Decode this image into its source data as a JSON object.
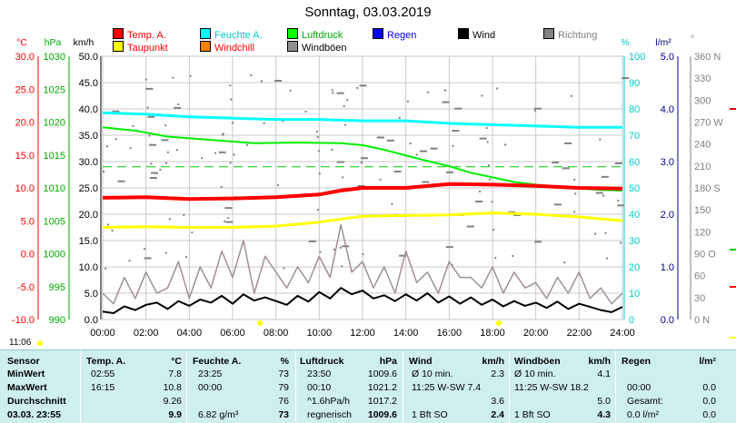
{
  "title": "Sonntag, 03.03.2019",
  "legend": [
    {
      "label": "Temp. A.",
      "color": "#ff0000",
      "text_color": "#ff0000"
    },
    {
      "label": "Feuchte A.",
      "color": "#00ffff",
      "text_color": "#00cccc"
    },
    {
      "label": "Luftdruck",
      "color": "#00ff00",
      "text_color": "#00aa00"
    },
    {
      "label": "Regen",
      "color": "#0000ff",
      "text_color": "#0000ff"
    },
    {
      "label": "Wind",
      "color": "#000000",
      "text_color": "#000000"
    },
    {
      "label": "Richtung",
      "color": "#808080",
      "text_color": "#808080"
    },
    {
      "label": "Taupunkt",
      "color": "#ffff00",
      "text_color": "#ff0000"
    },
    {
      "label": "Windchill",
      "color": "#ff8000",
      "text_color": "#ff0000"
    },
    {
      "label": "Windböen",
      "color": "#909090",
      "text_color": "#000000"
    }
  ],
  "axis_units": {
    "temp": "°C",
    "press": "hPa",
    "wind": "km/h",
    "hum": "%",
    "rain": "l/m²",
    "dir": "°"
  },
  "time_marker": "11:06",
  "chart_data": {
    "type": "line",
    "x_ticks": [
      "00:00",
      "02:00",
      "04:00",
      "06:00",
      "08:00",
      "10:00",
      "12:00",
      "14:00",
      "16:00",
      "18:00",
      "20:00",
      "22:00",
      "24:00"
    ],
    "xlim": [
      0,
      24
    ],
    "axes": {
      "temp": {
        "ylim": [
          -10,
          30
        ],
        "ticks": [
          "30.0",
          "25.0",
          "20.0",
          "15.0",
          "10.0",
          "5.0",
          "0.0",
          "-5.0",
          "-10.0"
        ],
        "color": "#ff0000"
      },
      "press": {
        "ylim": [
          990,
          1030
        ],
        "ticks": [
          "1030",
          "1025",
          "1020",
          "1015",
          "1010",
          "1005",
          "1000",
          "995",
          "990"
        ],
        "color": "#00aa00"
      },
      "wind": {
        "ylim": [
          0,
          50
        ],
        "ticks": [
          "50.0",
          "45.0",
          "40.0",
          "35.0",
          "30.0",
          "25.0",
          "20.0",
          "15.0",
          "10.0",
          "5.0",
          "0.0"
        ],
        "color": "#000000"
      },
      "hum": {
        "ylim": [
          0,
          100
        ],
        "ticks": [
          "100",
          "90",
          "80",
          "70",
          "60",
          "50",
          "40",
          "30",
          "20",
          "10",
          "0"
        ],
        "color": "#00cccc"
      },
      "rain": {
        "ylim": [
          0,
          5
        ],
        "ticks": [
          "5.0",
          "4.0",
          "3.0",
          "2.0",
          "1.0",
          "0.0"
        ],
        "color": "#000080"
      },
      "dir": {
        "ylim": [
          0,
          360
        ],
        "ticks": [
          "360 N",
          "330",
          "300",
          "270 W",
          "240",
          "210",
          "180 S",
          "150",
          "120",
          "90 O",
          "60",
          "30",
          "0 N"
        ],
        "color": "#808080"
      }
    },
    "series": [
      {
        "name": "Temp. A.",
        "axis": "temp",
        "color": "#ff0000",
        "width": 4,
        "x": [
          0,
          2,
          4,
          6,
          8,
          10,
          11,
          12,
          14,
          16,
          18,
          20,
          22,
          24
        ],
        "y": [
          8.5,
          8.6,
          8.3,
          8.4,
          8.6,
          9.0,
          9.6,
          10.0,
          10.0,
          10.6,
          10.5,
          10.3,
          10.0,
          9.9
        ]
      },
      {
        "name": "Feuchte A.",
        "axis": "hum",
        "color": "#00ffff",
        "width": 3,
        "x": [
          0,
          2,
          4,
          6,
          8,
          10,
          12,
          14,
          16,
          18,
          20,
          22,
          24
        ],
        "y": [
          78.5,
          78,
          77,
          76.5,
          76,
          76,
          75.5,
          75.5,
          74.5,
          74,
          73.5,
          73,
          73
        ]
      },
      {
        "name": "Luftdruck",
        "axis": "press",
        "color": "#00ee00",
        "width": 2,
        "x": [
          0,
          1.5,
          3,
          5,
          7,
          9,
          11,
          12,
          13,
          14.5,
          16,
          17,
          18,
          19,
          20,
          21,
          22,
          23,
          24
        ],
        "y": [
          1019.2,
          1018.7,
          1017.8,
          1017.3,
          1016.8,
          1016.9,
          1016.8,
          1016.5,
          1015.8,
          1014.5,
          1013.3,
          1012.3,
          1011.6,
          1010.9,
          1010.5,
          1010.2,
          1009.9,
          1009.7,
          1009.6
        ]
      },
      {
        "name": "Taupunkt",
        "axis": "temp",
        "color": "#ffff00",
        "width": 3,
        "x": [
          0,
          2,
          4,
          6,
          8,
          10,
          12,
          14,
          16,
          18,
          20,
          22,
          24
        ],
        "y": [
          4.0,
          4.1,
          4.0,
          4.0,
          4.2,
          4.8,
          5.7,
          5.8,
          5.9,
          6.2,
          6.0,
          5.6,
          5.0
        ]
      },
      {
        "name": "Wind",
        "axis": "wind",
        "color": "#000000",
        "width": 2,
        "x": [
          0,
          0.5,
          1,
          1.5,
          2,
          2.5,
          3,
          3.5,
          4,
          4.5,
          5,
          5.5,
          6,
          6.5,
          7,
          7.5,
          8,
          8.5,
          9,
          9.5,
          10,
          10.5,
          11,
          11.5,
          12,
          12.5,
          13,
          13.5,
          14,
          14.5,
          15,
          15.5,
          16,
          16.5,
          17,
          17.5,
          18,
          18.5,
          19,
          19.5,
          20,
          20.5,
          21,
          21.5,
          22,
          22.5,
          23,
          23.5,
          24
        ],
        "y": [
          1.5,
          1.2,
          2.5,
          1.8,
          2.8,
          3.2,
          2.0,
          3.5,
          2.6,
          3.8,
          3.2,
          4.5,
          3.0,
          4.8,
          3.6,
          4.2,
          3.5,
          2.8,
          4.5,
          3.4,
          5.2,
          4.0,
          6.0,
          4.8,
          5.5,
          4.0,
          4.6,
          3.5,
          4.8,
          3.6,
          5.0,
          3.2,
          4.4,
          3.0,
          4.2,
          2.8,
          3.8,
          2.5,
          3.5,
          2.6,
          3.2,
          2.2,
          3.4,
          2.0,
          3.0,
          2.4,
          1.8,
          1.4,
          2.4
        ]
      },
      {
        "name": "Windböen",
        "axis": "wind",
        "color": "#a09090",
        "width": 1.5,
        "x": [
          0,
          0.5,
          1,
          1.5,
          2,
          2.5,
          3,
          3.5,
          4,
          4.5,
          5,
          5.5,
          6,
          6.5,
          7,
          7.5,
          8,
          8.5,
          9,
          9.5,
          10,
          10.5,
          11,
          11.5,
          12,
          12.5,
          13,
          13.5,
          14,
          14.5,
          15,
          15.5,
          16,
          16.5,
          17,
          17.5,
          18,
          18.5,
          19,
          19.5,
          20,
          20.5,
          21,
          21.5,
          22,
          22.5,
          23,
          23.5,
          24
        ],
        "y": [
          5,
          3,
          8,
          4,
          9,
          5,
          6,
          11,
          4,
          10,
          6,
          13,
          8,
          15,
          5,
          12,
          9,
          6,
          10,
          7,
          12,
          8,
          18,
          9,
          11,
          6,
          10,
          5,
          13,
          7,
          9,
          5,
          11,
          8,
          8,
          6,
          10,
          5,
          9,
          6,
          7,
          4,
          8,
          5,
          9,
          4,
          6,
          3,
          5
        ]
      }
    ]
  },
  "table": {
    "headers": {
      "sensor": "Sensor",
      "temp": "Temp. A.",
      "temp_u": "°C",
      "hum": "Feuchte A.",
      "hum_u": "%",
      "press": "Luftdruck",
      "press_u": "hPa",
      "wind": "Wind",
      "wind_u": "km/h",
      "gust": "Windböen",
      "gust_u": "km/h",
      "rain": "Regen",
      "rain_u": "l/m²"
    },
    "rows": [
      {
        "label": "MinWert",
        "temp_t": "02:55",
        "temp_v": "7.8",
        "hum_t": "23:25",
        "hum_v": "73",
        "press_t": "23:50",
        "press_v": "1009.6",
        "wind_t": "Ø 10 min.",
        "wind_v": "2.3",
        "gust_t": "Ø 10 min.",
        "gust_v": "4.1",
        "rain_t": "",
        "rain_v": ""
      },
      {
        "label": "MaxWert",
        "temp_t": "16:15",
        "temp_v": "10.8",
        "hum_t": "00:00",
        "hum_v": "79",
        "press_t": "00:10",
        "press_v": "1021.2",
        "wind_t": "11:25   W-SW 7.4",
        "wind_v": "",
        "gust_t": "11:25   W-SW 18.2",
        "gust_v": "",
        "rain_t": "00:00",
        "rain_v": "0.0"
      },
      {
        "label": "Durchschnitt",
        "temp_t": "",
        "temp_v": "9.26",
        "hum_t": "",
        "hum_v": "76",
        "press_t": "^1.6hPa/h",
        "press_v": "1017.2",
        "wind_t": "",
        "wind_v": "3.6",
        "gust_t": "",
        "gust_v": "5.0",
        "rain_t": "Gesamt:",
        "rain_v": "0.0"
      },
      {
        "label": "03.03. 23:55",
        "temp_t": "",
        "temp_v": "9.9",
        "hum_t": "6.82 g/m³",
        "hum_v": "73",
        "press_t": "regnerisch",
        "press_v": "1009.6",
        "wind_t": "1 Bft SO",
        "wind_v": "2.4",
        "gust_t": "1 Bft SO",
        "gust_v": "4.3",
        "rain_t": "0.0 l/m²",
        "rain_v": "0.0"
      }
    ]
  }
}
